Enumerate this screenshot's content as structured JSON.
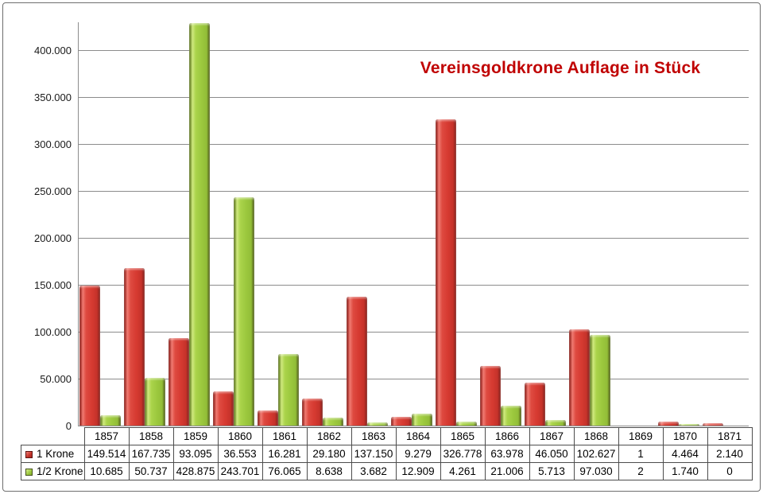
{
  "chart_data": {
    "type": "bar",
    "title": "Vereinsgoldkrone Auflage in Stück",
    "title_color": "#c00000",
    "categories": [
      "1857",
      "1858",
      "1859",
      "1860",
      "1861",
      "1862",
      "1863",
      "1864",
      "1865",
      "1866",
      "1867",
      "1868",
      "1869",
      "1870",
      "1871"
    ],
    "series": [
      {
        "name": "1 Krone",
        "color": "#d63a31",
        "values": [
          149514,
          167735,
          93095,
          36553,
          16281,
          29180,
          137150,
          9279,
          326778,
          63978,
          46050,
          102627,
          1,
          4464,
          2140
        ],
        "display": [
          "149.514",
          "167.735",
          "93.095",
          "36.553",
          "16.281",
          "29.180",
          "137.150",
          "9.279",
          "326.778",
          "63.978",
          "46.050",
          "102.627",
          "1",
          "4.464",
          "2.140"
        ]
      },
      {
        "name": "1/2 Krone",
        "color": "#9cc83e",
        "values": [
          10685,
          50737,
          428875,
          243701,
          76065,
          8638,
          3682,
          12909,
          4261,
          21006,
          5713,
          97030,
          2,
          1740,
          0
        ],
        "display": [
          "10.685",
          "50.737",
          "428.875",
          "243.701",
          "76.065",
          "8.638",
          "3.682",
          "12.909",
          "4.261",
          "21.006",
          "5.713",
          "97.030",
          "2",
          "1.740",
          "0"
        ]
      }
    ],
    "yticks": {
      "values": [
        0,
        50000,
        100000,
        150000,
        200000,
        250000,
        300000,
        350000,
        400000
      ],
      "labels": [
        "0",
        "50.000",
        "100.000",
        "150.000",
        "200.000",
        "250.000",
        "300.000",
        "350.000",
        "400.000"
      ]
    },
    "ylim": [
      0,
      430000
    ],
    "xlabel": "",
    "ylabel": "",
    "grid": "horizontal",
    "grid_color": "#8c8c8c",
    "legend_position": "table-left",
    "table_border_color": "#4d4d4d"
  }
}
